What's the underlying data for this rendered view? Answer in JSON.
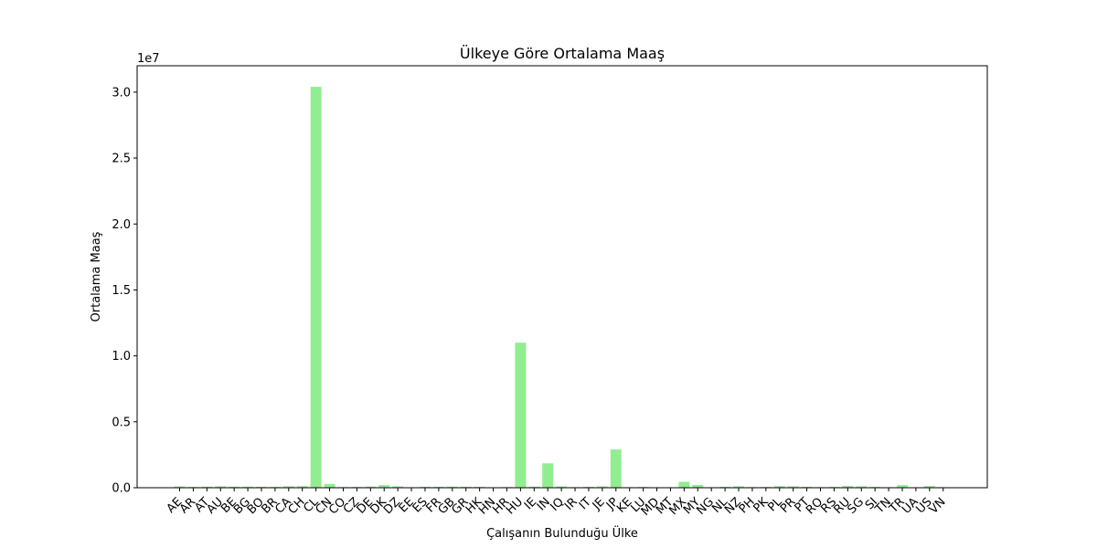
{
  "chart_data": {
    "type": "bar",
    "title": "Ülkeye Göre Ortalama Maaş",
    "xlabel": "Çalışanın Bulunduğu Ülke",
    "ylabel": "Ortalama Maaş",
    "y_offset_label": "1e7",
    "y_scale": 10000000,
    "ylim": [
      0,
      32000000
    ],
    "yticks": [
      0,
      5000000,
      10000000,
      15000000,
      20000000,
      25000000,
      30000000
    ],
    "ytick_labels": [
      "0.0",
      "0.5",
      "1.0",
      "1.5",
      "2.0",
      "2.5",
      "3.0"
    ],
    "grid": false,
    "bar_color": "#90ee90",
    "categories": [
      "AE",
      "AR",
      "AT",
      "AU",
      "BE",
      "BG",
      "BO",
      "BR",
      "CA",
      "CH",
      "CL",
      "CN",
      "CO",
      "CZ",
      "DE",
      "DK",
      "DZ",
      "EE",
      "ES",
      "FR",
      "GB",
      "GR",
      "HK",
      "HN",
      "HR",
      "HU",
      "IE",
      "IN",
      "IQ",
      "IR",
      "IT",
      "JE",
      "JP",
      "KE",
      "LU",
      "MD",
      "MT",
      "MX",
      "MY",
      "NG",
      "NL",
      "NZ",
      "PH",
      "PK",
      "PL",
      "PR",
      "PT",
      "RO",
      "RS",
      "RU",
      "SG",
      "SI",
      "TN",
      "TR",
      "UA",
      "US",
      "VN"
    ],
    "values": [
      100000,
      60000,
      80000,
      110000,
      80000,
      80000,
      70000,
      60000,
      110000,
      120000,
      30400000,
      290000,
      50000,
      60000,
      90000,
      200000,
      100000,
      30000,
      70000,
      70000,
      80000,
      70000,
      70000,
      20000,
      50000,
      11000000,
      80000,
      1850000,
      100000,
      40000,
      70000,
      100000,
      2900000,
      40000,
      60000,
      20000,
      30000,
      450000,
      210000,
      30000,
      70000,
      110000,
      50000,
      60000,
      120000,
      110000,
      70000,
      40000,
      60000,
      130000,
      110000,
      60000,
      30000,
      200000,
      30000,
      130000,
      40000
    ]
  }
}
